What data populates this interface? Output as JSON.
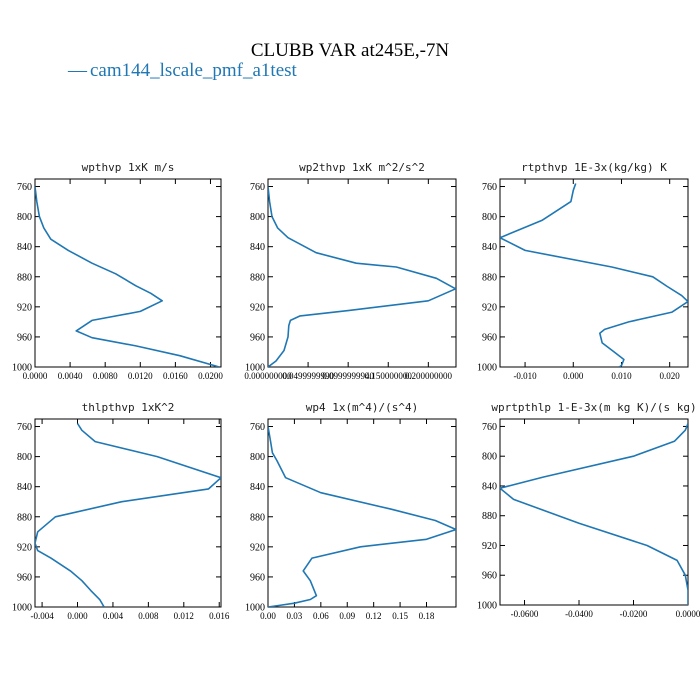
{
  "figure": {
    "title": "CLUBB VAR at245E,-7N",
    "legend": {
      "dash": "—",
      "label": "cam144_lscale_pmf_a1test",
      "color": "#1f77b4",
      "placement": "top-left"
    }
  },
  "chart_data": [
    {
      "type": "line",
      "title": "wpthvp  1xK m/s",
      "ylim": [
        1000,
        750
      ],
      "yticks": [
        760,
        800,
        840,
        880,
        920,
        960,
        1000
      ],
      "xlim": [
        0,
        0.0212
      ],
      "xticks": [
        0,
        0.004,
        0.008,
        0.012,
        0.016,
        0.02
      ],
      "xtick_labels": [
        "0.0000",
        "0.0040",
        "0.0080",
        "0.0120",
        "0.0160",
        "0.0200"
      ],
      "series": [
        {
          "color": "#1f77b4",
          "x": [
            0.0,
            0.0002,
            0.0005,
            0.001,
            0.0018,
            0.0038,
            0.0065,
            0.0092,
            0.0115,
            0.0132,
            0.0145,
            0.012,
            0.0065,
            0.0047,
            0.0065,
            0.0115,
            0.0165,
            0.021
          ],
          "y": [
            760,
            780,
            800,
            815,
            830,
            845,
            862,
            876,
            892,
            902,
            912,
            926,
            938,
            952,
            961,
            972,
            985,
            1000
          ]
        }
      ]
    },
    {
      "type": "line",
      "title": "wp2thvp  1xK m^2/s^2",
      "ylim": [
        1000,
        750
      ],
      "yticks": [
        760,
        800,
        840,
        880,
        920,
        960,
        1000
      ],
      "xlim": [
        0,
        0.2345
      ],
      "xticks": [
        0,
        0.05,
        0.1,
        0.15,
        0.2
      ],
      "xtick_labels": [
        "0.000000000",
        "0.0499999990",
        "0.0999999940",
        "0.150000000",
        "0.200000000"
      ],
      "series": [
        {
          "color": "#1f77b4",
          "x": [
            0.0,
            0.002,
            0.005,
            0.012,
            0.025,
            0.06,
            0.11,
            0.16,
            0.21,
            0.234,
            0.2,
            0.1,
            0.04,
            0.028,
            0.026,
            0.025,
            0.02,
            0.01,
            0.0
          ],
          "y": [
            760,
            780,
            800,
            815,
            828,
            848,
            862,
            867,
            882,
            896,
            912,
            925,
            932,
            938,
            945,
            960,
            978,
            992,
            1000
          ]
        }
      ]
    },
    {
      "type": "line",
      "title": "rtpthvp  1E-3x(kg/kg) K",
      "ylim": [
        1000,
        750
      ],
      "yticks": [
        760,
        800,
        840,
        880,
        920,
        960,
        1000
      ],
      "xlim": [
        -0.0152,
        0.0238
      ],
      "xticks": [
        -0.01,
        0,
        0.01,
        0.02
      ],
      "xtick_labels": [
        "-0.010",
        "0.000",
        "0.010",
        "0.020"
      ],
      "series": [
        {
          "color": "#1f77b4",
          "x": [
            0.0005,
            0.0,
            -0.0005,
            -0.0065,
            -0.0152,
            -0.01,
            0.008,
            0.0165,
            0.0195,
            0.0225,
            0.0238,
            0.0205,
            0.0115,
            0.0065,
            0.0055,
            0.006,
            0.0085,
            0.0105,
            0.01,
            0.0095
          ],
          "y": [
            756,
            765,
            780,
            805,
            828,
            845,
            867,
            880,
            893,
            905,
            913,
            927,
            940,
            950,
            955,
            968,
            980,
            990,
            998,
            1000
          ]
        }
      ]
    },
    {
      "type": "line",
      "title": "thlpthvp  1xK^2",
      "ylim": [
        1000,
        750
      ],
      "yticks": [
        760,
        800,
        840,
        880,
        920,
        960,
        1000
      ],
      "xlim": [
        -0.0048,
        0.0162
      ],
      "xticks": [
        -0.004,
        0,
        0.004,
        0.008,
        0.012,
        0.016
      ],
      "xtick_labels": [
        "-0.004",
        "0.000",
        "0.004",
        "0.008",
        "0.012",
        "0.016"
      ],
      "series": [
        {
          "color": "#1f77b4",
          "x": [
            0.0,
            0.0005,
            0.002,
            0.009,
            0.0162,
            0.0148,
            0.005,
            -0.0025,
            -0.0045,
            -0.0048,
            -0.0045,
            -0.003,
            -0.0008,
            0.0005,
            0.0015,
            0.0025,
            0.003
          ],
          "y": [
            756,
            765,
            780,
            800,
            828,
            843,
            860,
            880,
            900,
            915,
            925,
            935,
            952,
            965,
            978,
            990,
            1000
          ]
        }
      ]
    },
    {
      "type": "line",
      "title": "wp4  1x(m^4)/(s^4)",
      "ylim": [
        1000,
        750
      ],
      "yticks": [
        760,
        800,
        840,
        880,
        920,
        960,
        1000
      ],
      "xlim": [
        0,
        0.2135
      ],
      "xticks": [
        0,
        0.03,
        0.06,
        0.09,
        0.12,
        0.15,
        0.18
      ],
      "xtick_labels": [
        "0.00",
        "0.03",
        "0.06",
        "0.09",
        "0.12",
        "0.15",
        "0.18"
      ],
      "series": [
        {
          "color": "#1f77b4",
          "x": [
            0.0,
            0.003,
            0.005,
            0.01,
            0.02,
            0.06,
            0.14,
            0.19,
            0.2135,
            0.18,
            0.105,
            0.05,
            0.04,
            0.048,
            0.055,
            0.048,
            0.03,
            0.012,
            0.0
          ],
          "y": [
            760,
            780,
            795,
            805,
            828,
            848,
            870,
            885,
            897,
            910,
            920,
            935,
            952,
            965,
            985,
            990,
            995,
            998,
            1000
          ]
        }
      ]
    },
    {
      "type": "line",
      "title": "wprtpthlp  1-E-3x(m kg K)/(s kg)",
      "ylim": [
        1000,
        750
      ],
      "yticks": [
        760,
        800,
        840,
        880,
        920,
        960,
        1000
      ],
      "xlim": [
        -0.069,
        0.0
      ],
      "xticks": [
        -0.06,
        -0.04,
        -0.02,
        0.0
      ],
      "xtick_labels": [
        "-0.0600",
        "-0.0400",
        "-0.0200",
        "0.0000"
      ],
      "series": [
        {
          "color": "#1f77b4",
          "x": [
            0.0,
            -0.001,
            -0.005,
            -0.02,
            -0.053,
            -0.069,
            -0.064,
            -0.04,
            -0.015,
            -0.004,
            -0.001,
            0.0,
            0.0
          ],
          "y": [
            756,
            765,
            780,
            800,
            828,
            843,
            858,
            890,
            920,
            940,
            960,
            980,
            1000
          ]
        }
      ]
    }
  ]
}
